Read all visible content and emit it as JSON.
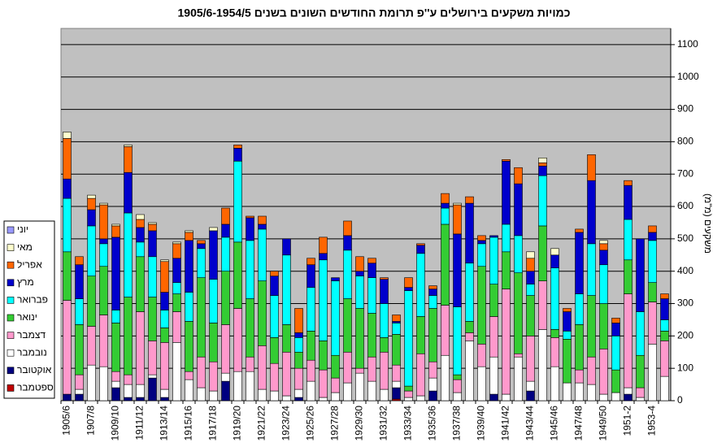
{
  "chart_data": {
    "type": "stacked-bar",
    "title": "כמויות משקעים בירושלים ע''פ תרומת החודשים השונים בשנים 1905/6-1954/5",
    "y_label": "משקעים (מ\"מ)",
    "categories": [
      "1905/6",
      null,
      "1907/8",
      null,
      "1909/10",
      null,
      "1911/12",
      null,
      "1913/14",
      null,
      "1915/16",
      null,
      "1917/18",
      null,
      "1919/20",
      null,
      "1921/22",
      null,
      "1923/24",
      null,
      "1925/26",
      null,
      "1927/28",
      null,
      "1929/30",
      null,
      "1931/32",
      null,
      "1933/34",
      null,
      "1935/36",
      null,
      "1937/38",
      null,
      "1939/40",
      null,
      "1941/42",
      null,
      "1943/44",
      null,
      "1945/46",
      null,
      "1947/48",
      null,
      "1949/50",
      null,
      "1951-2",
      null,
      "1953-4",
      null
    ],
    "series": [
      {
        "name": "ספטמבר",
        "color": "#c00000",
        "values": [
          0,
          0,
          0,
          0,
          0,
          0,
          0,
          0,
          0,
          0,
          0,
          0,
          0,
          0,
          0,
          0,
          0,
          0,
          0,
          0,
          0,
          0,
          0,
          0,
          0,
          0,
          0,
          5,
          0,
          0,
          0,
          0,
          0,
          0,
          0,
          0,
          0,
          0,
          0,
          0,
          0,
          0,
          0,
          0,
          0,
          0,
          0,
          0,
          0,
          0
        ]
      },
      {
        "name": "אוקטובר",
        "color": "#000080",
        "values": [
          20,
          20,
          0,
          0,
          40,
          10,
          10,
          70,
          10,
          0,
          0,
          0,
          0,
          60,
          0,
          0,
          0,
          0,
          0,
          10,
          0,
          0,
          0,
          0,
          0,
          0,
          0,
          35,
          0,
          0,
          30,
          0,
          0,
          0,
          0,
          20,
          0,
          0,
          30,
          0,
          0,
          0,
          0,
          0,
          0,
          0,
          20,
          0,
          0,
          0
        ]
      },
      {
        "name": "נובמבר",
        "color": "#ffffff",
        "values": [
          0,
          15,
          110,
          105,
          20,
          40,
          40,
          10,
          25,
          180,
          65,
          40,
          30,
          25,
          90,
          90,
          35,
          30,
          15,
          25,
          60,
          10,
          25,
          55,
          85,
          60,
          35,
          20,
          10,
          15,
          40,
          140,
          25,
          185,
          105,
          115,
          20,
          135,
          30,
          220,
          105,
          55,
          55,
          50,
          20,
          25,
          20,
          10,
          175,
          75
        ]
      },
      {
        "name": "דצמבר",
        "color": "#ff99cc",
        "values": [
          290,
          45,
          120,
          160,
          30,
          30,
          225,
          105,
          145,
          95,
          25,
          95,
          90,
          150,
          195,
          45,
          135,
          85,
          135,
          65,
          65,
          85,
          45,
          95,
          15,
          75,
          115,
          50,
          20,
          130,
          50,
          155,
          40,
          25,
          70,
          125,
          325,
          10,
          140,
          150,
          90,
          0,
          40,
          85,
          140,
          0,
          290,
          30,
          130,
          110
        ]
      },
      {
        "name": "ינואר",
        "color": "#33cc33",
        "values": [
          150,
          155,
          155,
          150,
          150,
          240,
          170,
          135,
          45,
          55,
          155,
          245,
          120,
          165,
          205,
          180,
          200,
          80,
          85,
          50,
          90,
          90,
          70,
          165,
          185,
          135,
          45,
          95,
          15,
          115,
          165,
          250,
          15,
          35,
          240,
          100,
          115,
          250,
          125,
          170,
          25,
          135,
          140,
          190,
          140,
          70,
          105,
          100,
          60,
          30
        ]
      },
      {
        "name": "פברואר",
        "color": "#00ffff",
        "values": [
          165,
          80,
          155,
          70,
          40,
          260,
          45,
          125,
          55,
          35,
          90,
          90,
          135,
          105,
          250,
          180,
          160,
          130,
          215,
          45,
          135,
          250,
          230,
          150,
          100,
          110,
          105,
          35,
          295,
          195,
          40,
          50,
          210,
          180,
          70,
          145,
          85,
          115,
          35,
          155,
          190,
          25,
          95,
          160,
          120,
          105,
          125,
          135,
          130,
          35
        ]
      },
      {
        "name": "מרץ",
        "color": "#0000cc",
        "values": [
          60,
          105,
          50,
          15,
          225,
          125,
          45,
          80,
          55,
          75,
          160,
          15,
          150,
          40,
          40,
          70,
          15,
          60,
          50,
          15,
          70,
          20,
          10,
          45,
          15,
          45,
          75,
          5,
          10,
          25,
          20,
          15,
          225,
          185,
          10,
          5,
          195,
          160,
          40,
          30,
          40,
          60,
          190,
          195,
          45,
          40,
          105,
          225,
          25,
          65
        ]
      },
      {
        "name": "אפריל",
        "color": "#ff6600",
        "values": [
          125,
          25,
          35,
          105,
          35,
          80,
          25,
          20,
          95,
          45,
          25,
          10,
          0,
          50,
          10,
          5,
          25,
          15,
          0,
          75,
          20,
          50,
          0,
          45,
          45,
          15,
          5,
          20,
          30,
          5,
          10,
          30,
          90,
          20,
          15,
          0,
          5,
          50,
          40,
          10,
          0,
          10,
          10,
          80,
          20,
          15,
          15,
          0,
          20,
          15
        ]
      },
      {
        "name": "מאי",
        "color": "#ffffcc",
        "values": [
          20,
          0,
          10,
          5,
          5,
          5,
          15,
          5,
          5,
          5,
          5,
          0,
          10,
          0,
          0,
          0,
          0,
          0,
          0,
          0,
          0,
          0,
          0,
          0,
          0,
          0,
          0,
          0,
          0,
          0,
          0,
          0,
          5,
          0,
          0,
          0,
          0,
          0,
          20,
          15,
          20,
          0,
          0,
          0,
          10,
          0,
          0,
          0,
          0,
          0
        ]
      },
      {
        "name": "יוני",
        "color": "#9999ff",
        "values": [
          0,
          0,
          0,
          0,
          0,
          0,
          0,
          0,
          0,
          0,
          0,
          0,
          0,
          0,
          0,
          0,
          0,
          0,
          0,
          0,
          0,
          0,
          0,
          0,
          0,
          0,
          0,
          0,
          0,
          0,
          0,
          0,
          0,
          0,
          0,
          0,
          0,
          0,
          0,
          0,
          0,
          0,
          0,
          0,
          0,
          0,
          0,
          0,
          0,
          0
        ]
      }
    ],
    "ylim": [
      0,
      1150
    ],
    "yticks": [
      0,
      100,
      200,
      300,
      400,
      500,
      600,
      700,
      800,
      900,
      1000,
      1100
    ],
    "grid": true,
    "legend": "left",
    "plot_background": "#c0c0c0"
  }
}
